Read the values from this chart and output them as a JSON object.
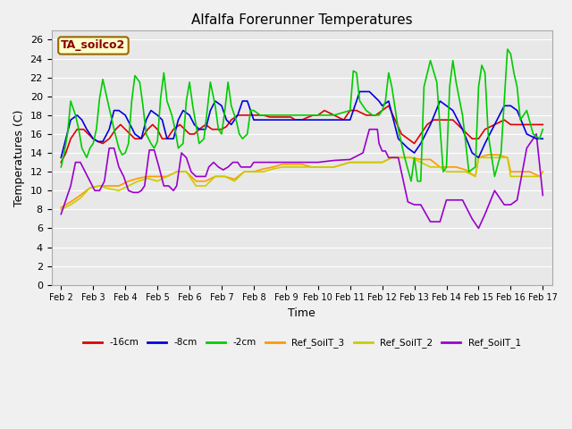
{
  "title": "Alfalfa Forerunner Temperatures",
  "xlabel": "Time",
  "ylabel": "Temperatures (C)",
  "ylim": [
    0,
    27
  ],
  "xlim": [
    -0.3,
    15.3
  ],
  "annotation": "TA_soilco2",
  "fig_bg_color": "#f0f0f0",
  "plot_bg_color": "#e8e8e8",
  "xtick_labels": [
    "Feb 2",
    "Feb 3",
    "Feb 4",
    "Feb 5",
    "Feb 6",
    "Feb 7",
    "Feb 8",
    "Feb 9",
    "Feb 10",
    "Feb 11",
    "Feb 12",
    "Feb 13",
    "Feb 14",
    "Feb 15",
    "Feb 16",
    "Feb 17"
  ],
  "ytick_vals": [
    0,
    2,
    4,
    6,
    8,
    10,
    12,
    14,
    16,
    18,
    20,
    22,
    24,
    26
  ],
  "series": {
    "neg16cm": {
      "color": "#dd0000",
      "label": "-16cm",
      "x": [
        0,
        0.15,
        0.3,
        0.5,
        0.7,
        0.85,
        1.0,
        1.15,
        1.3,
        1.5,
        1.7,
        1.85,
        2.0,
        2.15,
        2.3,
        2.5,
        2.7,
        2.85,
        3.0,
        3.15,
        3.3,
        3.5,
        3.7,
        3.85,
        4.0,
        4.15,
        4.3,
        4.5,
        4.7,
        4.85,
        5.0,
        5.15,
        5.3,
        5.5,
        5.7,
        5.85,
        6.0,
        6.15,
        6.3,
        6.5,
        6.7,
        6.85,
        7.0,
        7.15,
        7.3,
        7.5,
        7.7,
        7.85,
        8.0,
        8.2,
        8.5,
        8.8,
        9.0,
        9.2,
        9.5,
        9.8,
        10.0,
        10.2,
        10.4,
        10.6,
        10.8,
        11.0,
        11.2,
        11.4,
        11.6,
        11.8,
        12.0,
        12.2,
        12.5,
        12.8,
        13.0,
        13.2,
        13.5,
        13.8,
        14.0,
        14.2,
        14.5,
        14.8,
        15.0
      ],
      "y": [
        13.0,
        14.0,
        15.5,
        16.5,
        16.5,
        16.0,
        15.5,
        15.2,
        15.0,
        15.5,
        16.5,
        17.0,
        16.5,
        16.0,
        15.5,
        15.5,
        16.5,
        17.0,
        16.5,
        15.5,
        15.5,
        16.5,
        17.0,
        16.5,
        16.0,
        16.0,
        16.5,
        17.0,
        16.5,
        16.5,
        16.5,
        16.8,
        17.5,
        18.0,
        18.0,
        18.0,
        18.0,
        18.0,
        18.0,
        17.8,
        17.8,
        17.8,
        17.8,
        17.8,
        17.5,
        17.5,
        17.8,
        18.0,
        18.0,
        18.5,
        18.0,
        17.5,
        18.5,
        18.5,
        18.0,
        18.0,
        18.5,
        19.0,
        17.5,
        16.0,
        15.5,
        15.0,
        16.0,
        17.0,
        17.5,
        17.5,
        17.5,
        17.5,
        16.5,
        15.5,
        15.5,
        16.5,
        17.0,
        17.5,
        17.0,
        17.0,
        17.0,
        17.0,
        17.0
      ]
    },
    "neg8cm": {
      "color": "#0000dd",
      "label": "-8cm",
      "x": [
        0,
        0.15,
        0.3,
        0.5,
        0.65,
        0.8,
        1.0,
        1.15,
        1.3,
        1.5,
        1.65,
        1.8,
        2.0,
        2.15,
        2.3,
        2.5,
        2.65,
        2.8,
        3.0,
        3.15,
        3.3,
        3.5,
        3.65,
        3.8,
        4.0,
        4.15,
        4.3,
        4.5,
        4.65,
        4.8,
        5.0,
        5.15,
        5.3,
        5.5,
        5.65,
        5.8,
        6.0,
        6.15,
        6.3,
        6.5,
        6.65,
        6.8,
        7.0,
        7.15,
        7.3,
        7.5,
        7.65,
        7.8,
        8.0,
        8.3,
        8.6,
        8.9,
        9.0,
        9.3,
        9.6,
        9.9,
        10.0,
        10.2,
        10.5,
        10.8,
        11.0,
        11.2,
        11.5,
        11.8,
        12.0,
        12.2,
        12.5,
        12.8,
        13.0,
        13.2,
        13.5,
        13.8,
        14.0,
        14.2,
        14.5,
        14.8,
        15.0
      ],
      "y": [
        13.5,
        15.5,
        17.5,
        18.0,
        17.5,
        16.5,
        15.5,
        15.2,
        15.2,
        16.5,
        18.5,
        18.5,
        18.0,
        17.0,
        16.0,
        15.5,
        17.5,
        18.5,
        18.0,
        17.5,
        15.5,
        15.5,
        17.5,
        18.5,
        18.0,
        17.0,
        16.5,
        16.5,
        18.5,
        19.5,
        19.0,
        17.5,
        17.0,
        18.0,
        19.5,
        19.5,
        17.5,
        17.5,
        17.5,
        17.5,
        17.5,
        17.5,
        17.5,
        17.5,
        17.5,
        17.5,
        17.5,
        17.5,
        17.5,
        17.5,
        17.5,
        17.5,
        17.5,
        20.5,
        20.5,
        19.5,
        19.0,
        19.5,
        15.5,
        14.5,
        14.0,
        15.0,
        17.0,
        19.5,
        19.0,
        18.5,
        16.5,
        14.0,
        13.5,
        15.0,
        17.0,
        19.0,
        19.0,
        18.5,
        16.0,
        15.5,
        15.5
      ]
    },
    "neg2cm": {
      "color": "#00cc00",
      "label": "-2cm",
      "x": [
        0,
        0.1,
        0.2,
        0.3,
        0.45,
        0.55,
        0.65,
        0.8,
        0.9,
        1.0,
        1.1,
        1.2,
        1.3,
        1.45,
        1.55,
        1.65,
        1.8,
        1.9,
        2.0,
        2.1,
        2.2,
        2.3,
        2.45,
        2.55,
        2.65,
        2.8,
        2.9,
        3.0,
        3.1,
        3.2,
        3.3,
        3.45,
        3.55,
        3.65,
        3.8,
        3.9,
        4.0,
        4.1,
        4.2,
        4.3,
        4.45,
        4.55,
        4.65,
        4.8,
        4.9,
        5.0,
        5.1,
        5.2,
        5.3,
        5.45,
        5.55,
        5.65,
        5.8,
        5.9,
        6.0,
        6.2,
        6.5,
        6.8,
        7.0,
        7.2,
        7.5,
        7.8,
        8.0,
        8.2,
        8.5,
        9.0,
        9.1,
        9.2,
        9.3,
        9.5,
        9.7,
        9.9,
        10.0,
        10.1,
        10.2,
        10.3,
        10.5,
        10.7,
        10.9,
        11.0,
        11.1,
        11.2,
        11.3,
        11.5,
        11.7,
        11.9,
        12.0,
        12.1,
        12.2,
        12.3,
        12.5,
        12.7,
        12.9,
        13.0,
        13.1,
        13.2,
        13.3,
        13.5,
        13.7,
        13.9,
        14.0,
        14.1,
        14.2,
        14.3,
        14.5,
        14.7,
        14.9,
        15.0
      ],
      "y": [
        12.5,
        14.0,
        16.0,
        19.5,
        18.0,
        16.5,
        14.5,
        13.5,
        14.5,
        15.0,
        16.5,
        19.8,
        21.8,
        19.5,
        18.0,
        16.5,
        14.5,
        13.8,
        14.0,
        15.0,
        19.5,
        22.2,
        21.5,
        19.0,
        16.0,
        15.0,
        14.5,
        15.2,
        19.8,
        22.5,
        19.5,
        18.0,
        16.5,
        14.5,
        15.0,
        19.5,
        21.5,
        19.0,
        17.0,
        15.0,
        15.5,
        18.5,
        21.5,
        19.0,
        16.5,
        16.0,
        18.5,
        21.5,
        19.0,
        17.5,
        16.0,
        15.5,
        16.0,
        18.5,
        18.5,
        18.0,
        18.0,
        18.0,
        18.0,
        18.0,
        18.0,
        18.0,
        18.0,
        18.0,
        18.0,
        18.5,
        22.7,
        22.5,
        19.5,
        18.5,
        18.0,
        18.0,
        18.5,
        19.5,
        22.5,
        21.0,
        16.5,
        13.5,
        11.0,
        13.5,
        11.0,
        11.0,
        21.0,
        23.8,
        21.5,
        12.0,
        12.5,
        21.0,
        23.8,
        21.5,
        18.0,
        12.0,
        12.5,
        21.0,
        23.3,
        22.5,
        16.0,
        11.5,
        14.0,
        25.0,
        24.5,
        22.5,
        21.0,
        17.5,
        18.5,
        16.0,
        15.5,
        16.5
      ]
    },
    "ref_soilT3": {
      "color": "#ff9900",
      "label": "Ref_SoilT_3",
      "x": [
        0,
        0.3,
        0.6,
        0.9,
        1.2,
        1.5,
        1.8,
        2.1,
        2.4,
        2.7,
        3.0,
        3.3,
        3.6,
        3.9,
        4.2,
        4.5,
        4.8,
        5.1,
        5.4,
        5.7,
        6.0,
        6.3,
        6.6,
        6.9,
        7.2,
        7.5,
        7.8,
        8.0,
        8.5,
        9.0,
        9.5,
        10.0,
        10.3,
        10.6,
        10.9,
        11.2,
        11.5,
        11.8,
        12.0,
        12.3,
        12.6,
        12.9,
        13.0,
        13.3,
        13.6,
        13.9,
        14.0,
        14.3,
        14.6,
        14.9,
        15.0
      ],
      "y": [
        8.2,
        8.8,
        9.5,
        10.3,
        10.5,
        10.5,
        10.5,
        11.0,
        11.3,
        11.5,
        11.5,
        11.5,
        12.0,
        12.0,
        11.0,
        11.0,
        11.5,
        11.5,
        11.2,
        12.0,
        12.0,
        12.3,
        12.5,
        12.8,
        12.8,
        12.8,
        12.5,
        12.5,
        12.5,
        13.0,
        13.0,
        13.0,
        13.5,
        13.5,
        13.5,
        13.3,
        13.3,
        12.5,
        12.5,
        12.5,
        12.2,
        11.5,
        13.5,
        13.8,
        13.8,
        13.5,
        12.0,
        12.0,
        12.0,
        11.5,
        12.0
      ]
    },
    "ref_soilT2": {
      "color": "#cccc00",
      "label": "Ref_SoilT_2",
      "x": [
        0,
        0.3,
        0.6,
        0.9,
        1.2,
        1.5,
        1.8,
        2.1,
        2.4,
        2.7,
        3.0,
        3.3,
        3.6,
        3.9,
        4.2,
        4.5,
        4.8,
        5.1,
        5.4,
        5.7,
        6.0,
        6.3,
        6.6,
        6.9,
        7.2,
        7.5,
        7.8,
        8.0,
        8.5,
        9.0,
        9.5,
        10.0,
        10.3,
        10.6,
        10.9,
        11.2,
        11.5,
        11.8,
        12.0,
        12.3,
        12.6,
        12.9,
        13.0,
        13.3,
        13.6,
        13.9,
        14.0,
        14.3,
        14.6,
        14.9,
        15.0
      ],
      "y": [
        8.0,
        8.5,
        9.2,
        10.3,
        10.5,
        10.2,
        10.0,
        10.5,
        11.0,
        11.3,
        11.0,
        11.5,
        12.0,
        12.0,
        10.5,
        10.5,
        11.5,
        11.5,
        11.0,
        12.0,
        12.0,
        12.0,
        12.3,
        12.5,
        12.5,
        12.5,
        12.5,
        12.5,
        12.5,
        13.0,
        13.0,
        13.0,
        13.5,
        13.5,
        13.5,
        13.0,
        12.5,
        12.5,
        12.0,
        12.0,
        12.0,
        11.5,
        13.5,
        13.5,
        13.5,
        13.5,
        11.5,
        11.5,
        11.5,
        11.5,
        12.0
      ]
    },
    "ref_soilT1": {
      "color": "#9900cc",
      "label": "Ref_SoilT_1",
      "x": [
        0,
        0.15,
        0.3,
        0.45,
        0.6,
        0.75,
        0.9,
        1.05,
        1.2,
        1.35,
        1.5,
        1.65,
        1.8,
        1.95,
        2.1,
        2.25,
        2.4,
        2.5,
        2.6,
        2.75,
        2.9,
        3.05,
        3.2,
        3.35,
        3.5,
        3.6,
        3.75,
        3.9,
        4.05,
        4.2,
        4.35,
        4.5,
        4.6,
        4.75,
        4.9,
        5.05,
        5.2,
        5.35,
        5.5,
        5.6,
        5.75,
        5.9,
        6.0,
        6.2,
        6.5,
        6.8,
        7.0,
        7.3,
        7.6,
        7.9,
        8.0,
        8.5,
        9.0,
        9.4,
        9.6,
        9.8,
        9.85,
        9.9,
        10.0,
        10.1,
        10.2,
        10.5,
        10.8,
        11.0,
        11.2,
        11.5,
        11.8,
        12.0,
        12.2,
        12.5,
        12.8,
        13.0,
        13.2,
        13.5,
        13.8,
        14.0,
        14.2,
        14.5,
        14.8,
        15.0
      ],
      "y": [
        7.5,
        9.0,
        10.5,
        13.0,
        13.0,
        12.0,
        11.0,
        10.0,
        10.0,
        11.0,
        14.5,
        14.5,
        12.5,
        11.5,
        10.0,
        9.8,
        9.8,
        10.0,
        10.5,
        14.3,
        14.3,
        12.5,
        10.5,
        10.5,
        10.0,
        10.5,
        14.0,
        13.5,
        12.0,
        11.5,
        11.5,
        11.5,
        12.5,
        13.0,
        12.5,
        12.2,
        12.5,
        13.0,
        13.0,
        12.5,
        12.5,
        12.5,
        13.0,
        13.0,
        13.0,
        13.0,
        13.0,
        13.0,
        13.0,
        13.0,
        13.0,
        13.2,
        13.3,
        14.0,
        16.5,
        16.5,
        16.5,
        15.0,
        14.2,
        14.2,
        13.5,
        13.5,
        8.8,
        8.5,
        8.5,
        6.7,
        6.7,
        9.0,
        9.0,
        9.0,
        7.0,
        6.0,
        7.5,
        10.0,
        8.5,
        8.5,
        9.0,
        14.5,
        16.0,
        9.5
      ]
    }
  }
}
